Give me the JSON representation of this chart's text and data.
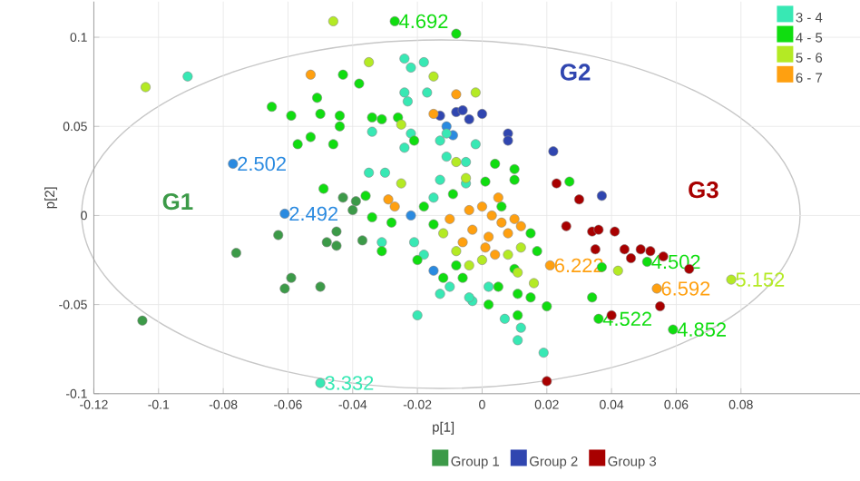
{
  "chart_data": {
    "type": "scatter",
    "xlabel": "p[1]",
    "ylabel": "p[2]",
    "xlim": [
      -0.12,
      0.12
    ],
    "ylim": [
      -0.1,
      0.12
    ],
    "xticks": [
      -0.12,
      -0.1,
      -0.08,
      -0.06,
      -0.04,
      -0.02,
      0,
      0.02,
      0.04,
      0.06,
      0.08
    ],
    "yticks": [
      -0.1,
      -0.05,
      0,
      0.05,
      0.1
    ],
    "grid": true,
    "legend": "bottom",
    "annotations": [
      {
        "text": "4.692",
        "x": -0.027,
        "y": 0.109
      },
      {
        "text": "2.502",
        "x": -0.077,
        "y": 0.029
      },
      {
        "text": "2.492",
        "x": -0.061,
        "y": 0.001
      },
      {
        "text": "3.332",
        "x": -0.05,
        "y": -0.094
      },
      {
        "text": "6.222",
        "x": 0.021,
        "y": -0.028
      },
      {
        "text": "4.502",
        "x": 0.051,
        "y": -0.026
      },
      {
        "text": "6.592",
        "x": 0.054,
        "y": -0.041
      },
      {
        "text": "5.152",
        "x": 0.077,
        "y": -0.036
      },
      {
        "text": "4.522",
        "x": 0.036,
        "y": -0.058
      },
      {
        "text": "4.852",
        "x": 0.059,
        "y": -0.064
      },
      "G1",
      "G2",
      "G3"
    ],
    "series": [
      {
        "name": "Group 1",
        "color": "#3c9a48",
        "x": [
          -0.063,
          -0.076,
          -0.045,
          -0.048,
          -0.045,
          -0.037,
          -0.059,
          -0.061,
          -0.05,
          -0.105,
          -0.043,
          -0.039,
          -0.04
        ],
        "values": [
          -0.011,
          -0.021,
          -0.009,
          -0.015,
          -0.017,
          -0.014,
          -0.035,
          -0.041,
          -0.04,
          -0.059,
          0.01,
          0.008,
          0.003
        ]
      },
      {
        "name": "Group 2",
        "color": "#3046b0",
        "x": [
          -0.013,
          -0.008,
          0.0,
          -0.006,
          -0.004,
          0.008,
          0.008,
          0.022,
          0.037
        ],
        "values": [
          0.056,
          0.058,
          0.057,
          0.059,
          0.054,
          0.046,
          0.042,
          0.036,
          0.011
        ]
      },
      {
        "name": "Group 3",
        "color": "#a80000",
        "x": [
          0.023,
          0.03,
          0.026,
          0.034,
          0.036,
          0.041,
          0.035,
          0.044,
          0.049,
          0.052,
          0.056,
          0.046,
          0.064,
          0.055,
          0.04,
          0.02
        ],
        "values": [
          0.018,
          0.009,
          -0.006,
          -0.009,
          -0.008,
          -0.009,
          -0.019,
          -0.019,
          -0.019,
          -0.02,
          -0.023,
          -0.024,
          -0.03,
          -0.051,
          -0.056,
          -0.093
        ]
      },
      {
        "color": "#2a8ae0",
        "x": [
          -0.077,
          -0.061,
          -0.022,
          -0.009,
          -0.015,
          -0.011
        ],
        "values": [
          0.029,
          0.001,
          0.0,
          0.045,
          -0.031,
          0.05
        ]
      },
      {
        "name": "3 - 4",
        "color": "#38e8b4",
        "x": [
          -0.091,
          -0.024,
          -0.018,
          -0.022,
          -0.024,
          -0.017,
          -0.023,
          -0.034,
          -0.022,
          -0.024,
          -0.013,
          -0.011,
          -0.035,
          -0.03,
          -0.013,
          -0.011,
          -0.005,
          -0.031,
          -0.021,
          -0.018,
          -0.013,
          -0.02,
          -0.003,
          -0.05,
          0.012,
          0.011,
          0.019,
          0.007,
          -0.004,
          0.002,
          -0.005,
          -0.015,
          -0.002,
          -0.01
        ],
        "values": [
          0.078,
          0.088,
          0.086,
          0.083,
          0.069,
          0.069,
          0.064,
          0.047,
          0.046,
          0.038,
          0.042,
          0.046,
          0.024,
          0.024,
          0.02,
          0.033,
          0.018,
          -0.015,
          -0.015,
          -0.022,
          -0.044,
          -0.056,
          -0.048,
          -0.094,
          -0.063,
          -0.07,
          -0.077,
          -0.058,
          -0.046,
          -0.04,
          0.03,
          0.01,
          0.04,
          -0.04
        ]
      },
      {
        "name": "4 - 5",
        "color": "#10dd10",
        "x": [
          -0.027,
          -0.008,
          -0.043,
          -0.038,
          -0.065,
          -0.059,
          -0.051,
          -0.05,
          -0.044,
          -0.044,
          -0.034,
          -0.031,
          -0.026,
          -0.053,
          -0.057,
          -0.046,
          -0.021,
          -0.049,
          -0.036,
          -0.034,
          -0.009,
          0.004,
          0.01,
          0.01,
          0.001,
          0.027,
          0.006,
          0.051,
          0.037,
          0.034,
          0.036,
          0.059,
          0.02,
          0.015,
          0.011,
          0.011,
          0.002,
          0.015,
          0.017,
          -0.031,
          -0.028,
          -0.008,
          -0.006,
          -0.015,
          -0.018,
          -0.02,
          0.01,
          -0.012,
          0.005
        ],
        "values": [
          0.109,
          0.102,
          0.079,
          0.074,
          0.061,
          0.056,
          0.066,
          0.057,
          0.056,
          0.05,
          0.055,
          0.054,
          0.055,
          0.044,
          0.04,
          0.04,
          0.042,
          0.015,
          0.011,
          -0.001,
          0.012,
          0.029,
          0.026,
          0.02,
          0.019,
          0.019,
          0.005,
          -0.026,
          -0.029,
          -0.046,
          -0.058,
          -0.064,
          -0.051,
          -0.046,
          -0.044,
          -0.056,
          -0.05,
          -0.01,
          -0.02,
          -0.02,
          -0.004,
          -0.028,
          -0.035,
          -0.005,
          0.005,
          -0.025,
          -0.03,
          -0.035,
          -0.04
        ]
      },
      {
        "name": "5 - 6",
        "color": "#b4ea24",
        "x": [
          -0.104,
          -0.046,
          -0.035,
          -0.015,
          -0.025,
          -0.025,
          -0.008,
          -0.002,
          -0.005,
          0.042,
          0.077,
          0.016,
          0.011,
          -0.008,
          -0.012,
          0.0,
          0.008,
          -0.004,
          0.012
        ],
        "values": [
          0.072,
          0.109,
          0.086,
          0.078,
          0.051,
          0.018,
          0.03,
          0.069,
          0.021,
          -0.031,
          -0.036,
          -0.038,
          -0.032,
          -0.02,
          -0.01,
          -0.025,
          -0.022,
          -0.028,
          -0.018
        ]
      },
      {
        "name": "6 - 7",
        "color": "#ffa010",
        "x": [
          -0.053,
          -0.008,
          -0.015,
          -0.029,
          -0.027,
          0.021,
          0.054,
          0.0,
          0.003,
          0.006,
          -0.003,
          0.002,
          0.008,
          0.005,
          -0.004,
          0.01,
          0.001,
          -0.006,
          0.004,
          0.012,
          -0.01
        ],
        "values": [
          0.079,
          0.068,
          0.057,
          0.009,
          0.005,
          -0.028,
          -0.041,
          0.005,
          0.0,
          -0.004,
          -0.008,
          -0.012,
          -0.01,
          0.01,
          0.003,
          -0.002,
          -0.018,
          -0.015,
          -0.022,
          -0.006,
          -0.002
        ]
      }
    ]
  }
}
